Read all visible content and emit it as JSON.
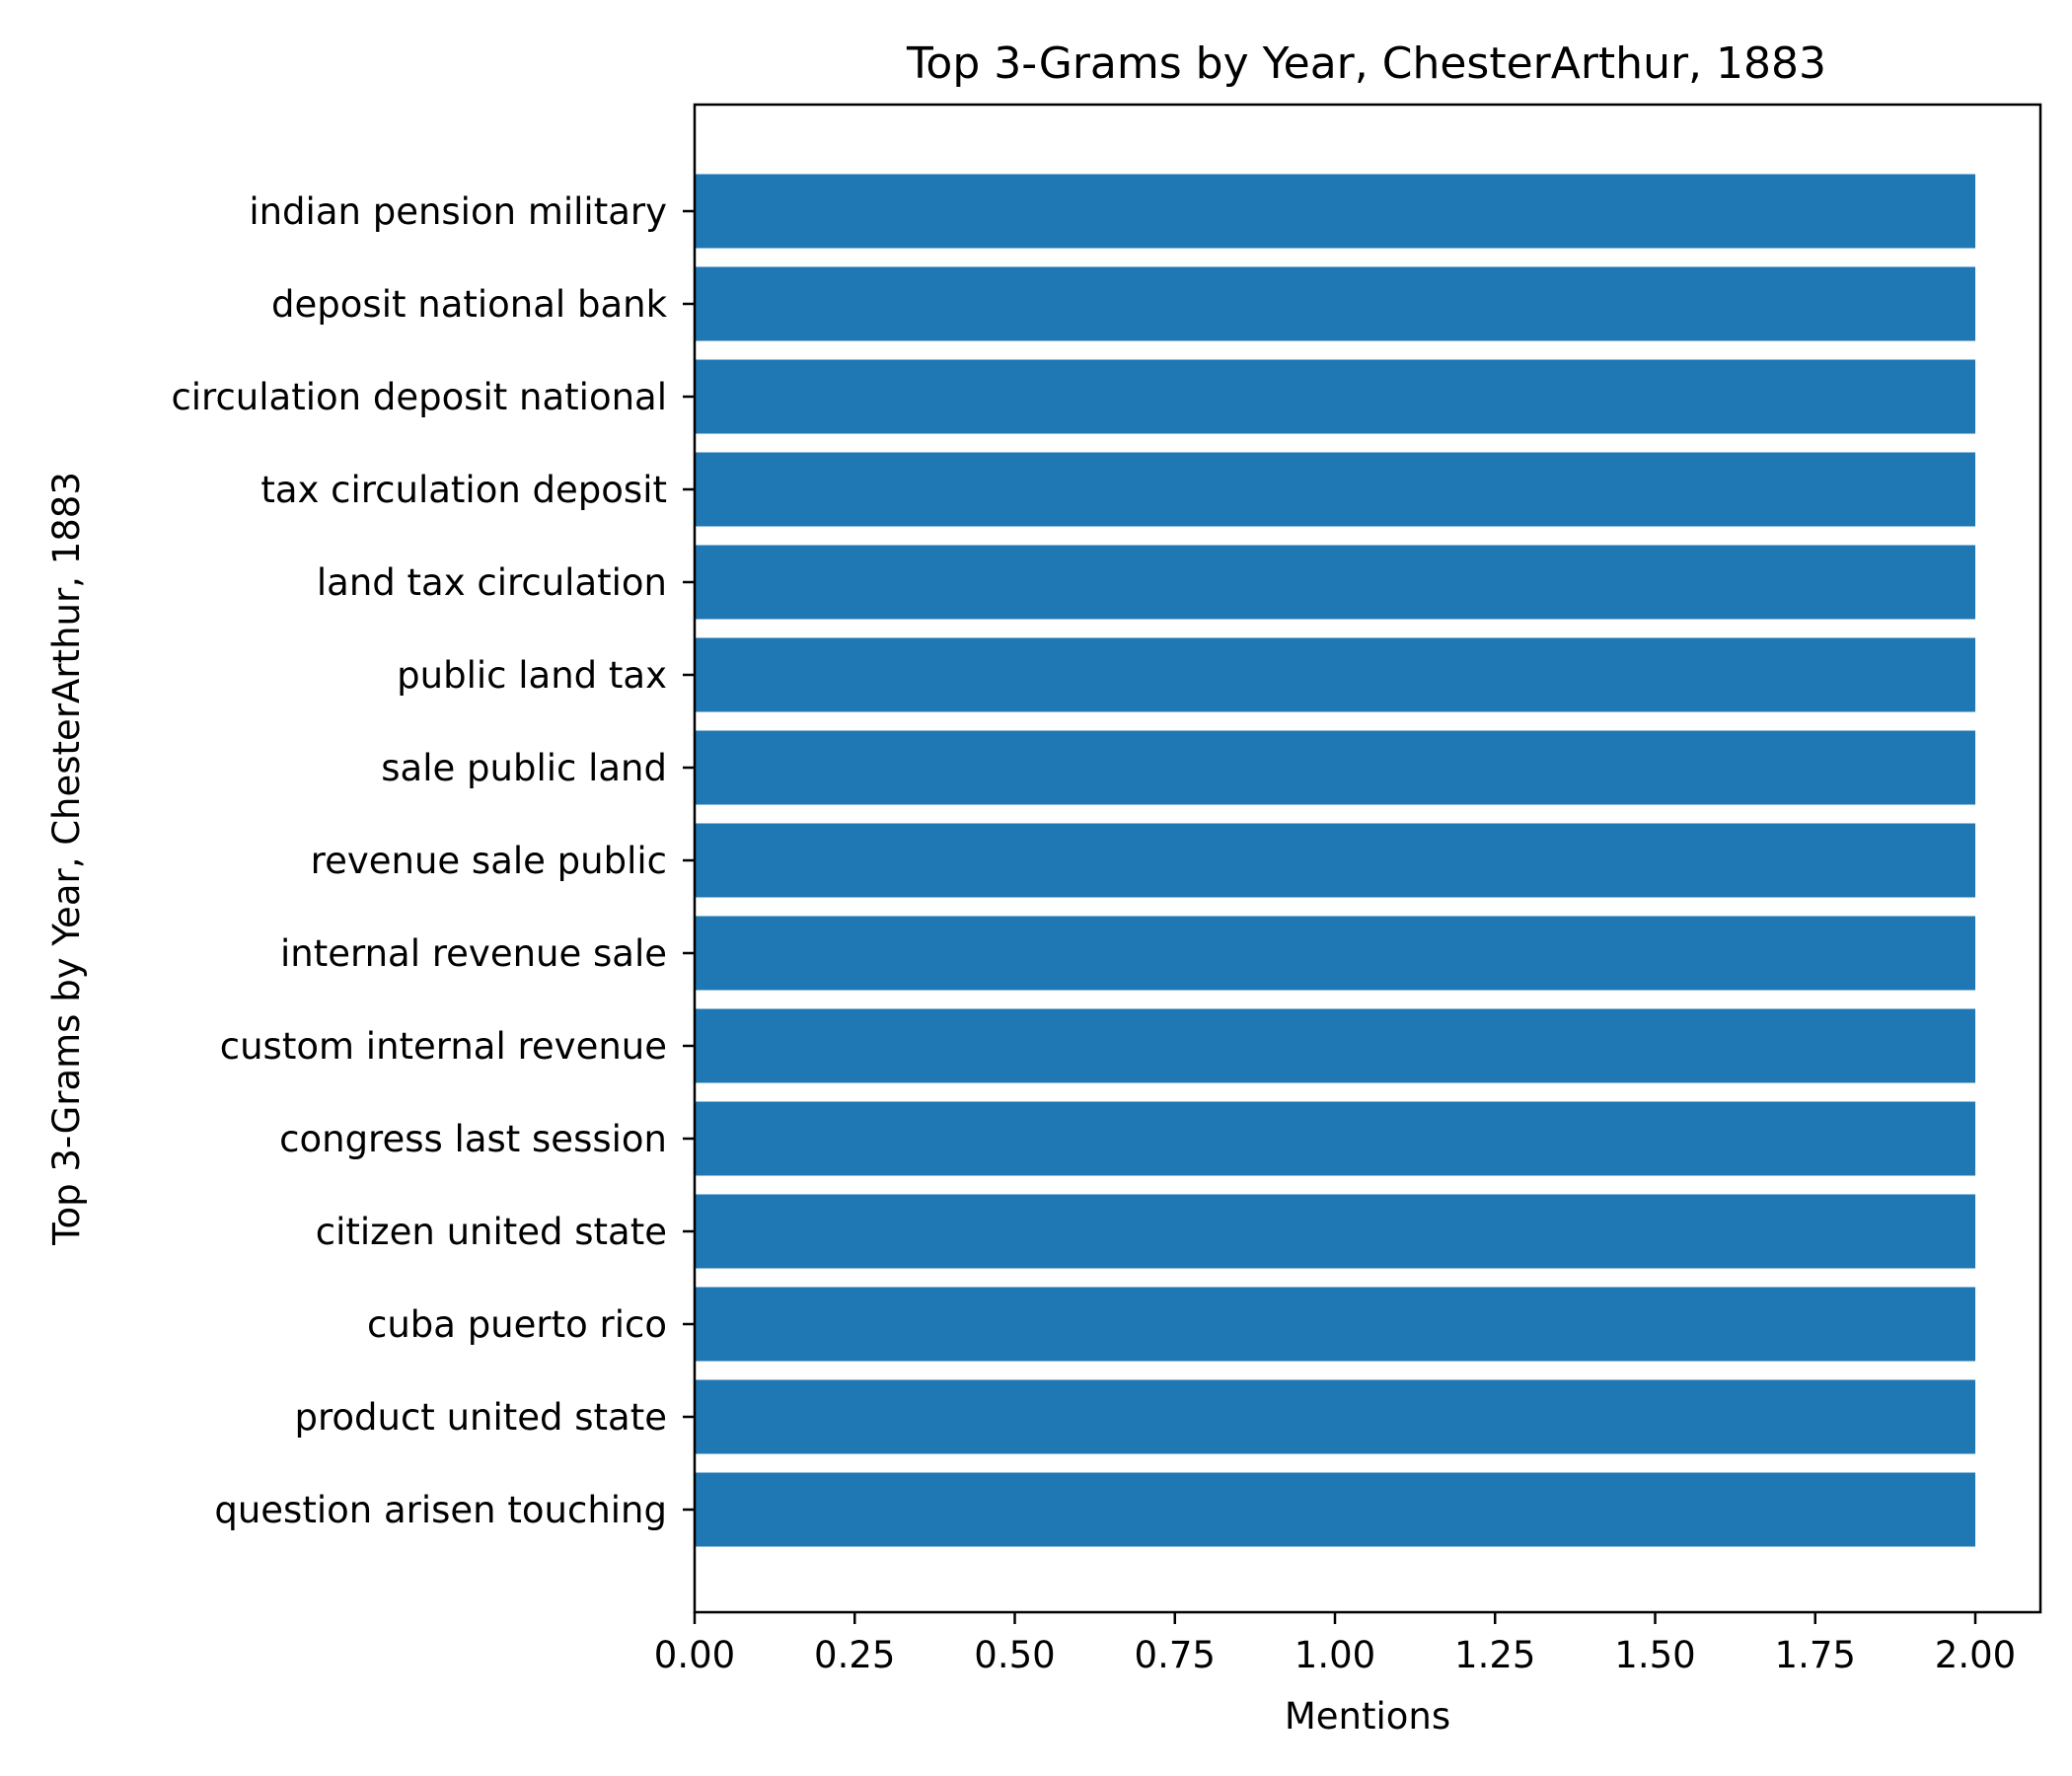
{
  "chart_data": {
    "type": "bar",
    "orientation": "horizontal",
    "title": "Top 3-Grams by Year, ChesterArthur, 1883",
    "xlabel": "Mentions",
    "ylabel": "Top 3-Grams by Year, ChesterArthur, 1883",
    "categories": [
      "indian pension military",
      "deposit national bank",
      "circulation deposit national",
      "tax circulation deposit",
      "land tax circulation",
      "public land tax",
      "sale public land",
      "revenue sale public",
      "internal revenue sale",
      "custom internal revenue",
      "congress last session",
      "citizen united state",
      "cuba puerto rico",
      "product united state",
      "question arisen touching"
    ],
    "values": [
      2,
      2,
      2,
      2,
      2,
      2,
      2,
      2,
      2,
      2,
      2,
      2,
      2,
      2,
      2
    ],
    "xlim": [
      0,
      2.1
    ],
    "xticks": [
      "0.00",
      "0.25",
      "0.50",
      "0.75",
      "1.00",
      "1.25",
      "1.50",
      "1.75",
      "2.00"
    ],
    "bar_color": "#1f77b4",
    "grid": false,
    "legend": "none"
  }
}
